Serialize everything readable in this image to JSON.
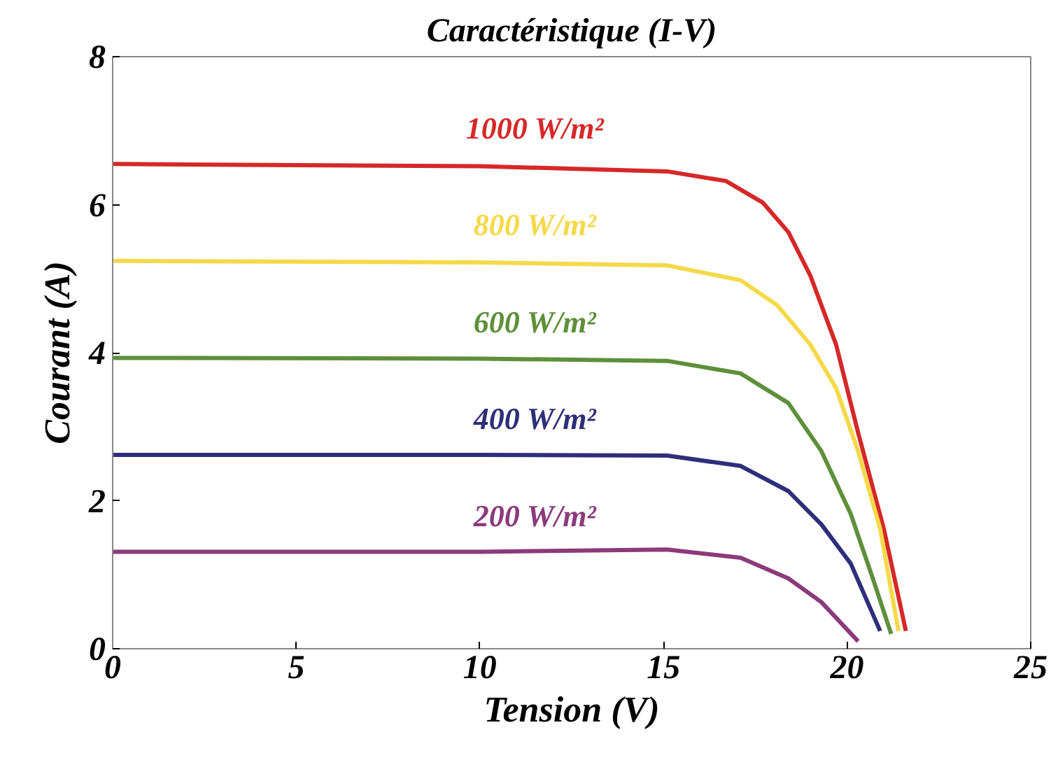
{
  "chart_data": {
    "type": "line",
    "title": "Caractéristique (I-V)",
    "xlabel": "Tension (V)",
    "ylabel": "Courant (A)",
    "xlim": [
      0,
      25
    ],
    "ylim": [
      0,
      8
    ],
    "xticks": [
      0,
      5,
      10,
      15,
      20,
      25
    ],
    "yticks": [
      0,
      2,
      4,
      6,
      8
    ],
    "grid": false,
    "marker": "none",
    "line_style": "solid",
    "series": [
      {
        "name": "1000 W/m²",
        "color": "#d62828",
        "x": [
          0,
          10,
          15.1,
          16.7,
          17.7,
          18.4,
          19.0,
          19.7,
          20.3,
          21.0,
          21.6
        ],
        "values": [
          6.55,
          6.52,
          6.45,
          6.32,
          6.03,
          5.63,
          5.04,
          4.11,
          2.92,
          1.62,
          0.24
        ]
      },
      {
        "name": "800 W/m²",
        "color": "#f5d94a",
        "x": [
          0,
          10,
          15.1,
          17.1,
          18.1,
          19.0,
          19.7,
          20.3,
          20.9,
          21.4
        ],
        "values": [
          5.24,
          5.22,
          5.18,
          4.98,
          4.64,
          4.11,
          3.52,
          2.67,
          1.62,
          0.24
        ]
      },
      {
        "name": "600 W/m²",
        "color": "#5e8f3a",
        "x": [
          0,
          10,
          15.1,
          17.1,
          18.4,
          19.3,
          20.1,
          20.7,
          21.2
        ],
        "values": [
          3.93,
          3.92,
          3.89,
          3.72,
          3.32,
          2.67,
          1.82,
          0.95,
          0.2
        ]
      },
      {
        "name": "400 W/m²",
        "color": "#2e2e7a",
        "x": [
          0,
          10,
          15.1,
          17.1,
          18.4,
          19.3,
          20.1,
          20.9
        ],
        "values": [
          2.62,
          2.62,
          2.61,
          2.47,
          2.13,
          1.68,
          1.15,
          0.24
        ]
      },
      {
        "name": "200 W/m²",
        "color": "#8b3a7a",
        "x": [
          0,
          10,
          15.1,
          17.1,
          18.4,
          19.3,
          20.3
        ],
        "values": [
          1.31,
          1.31,
          1.34,
          1.23,
          0.95,
          0.63,
          0.1
        ]
      }
    ]
  }
}
